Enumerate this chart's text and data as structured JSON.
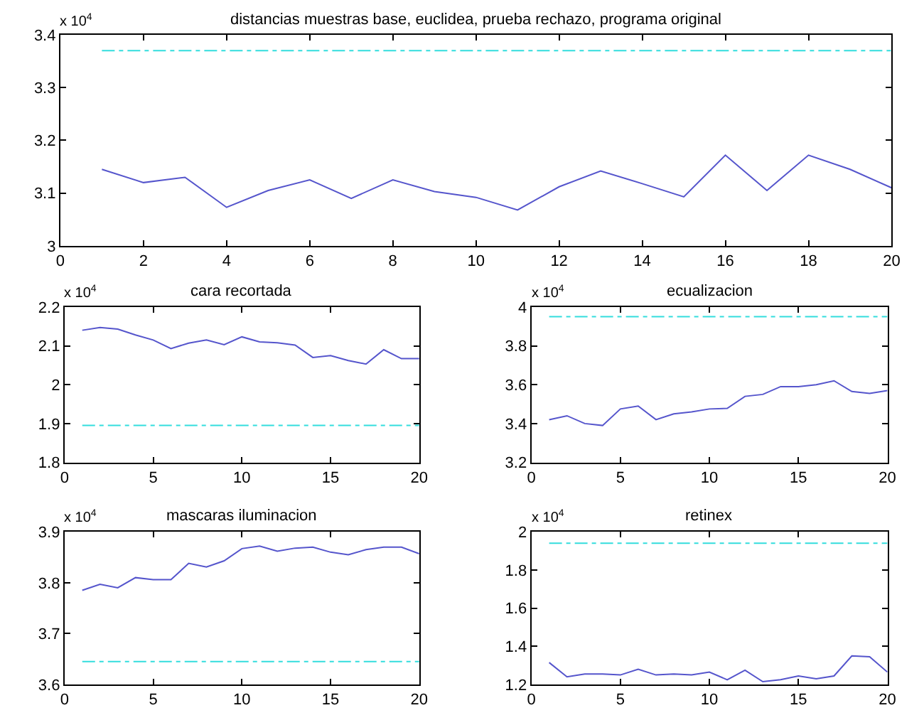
{
  "chart_data": [
    {
      "type": "line",
      "title": "distancias muestras base, euclidea, prueba rechazo, programa original",
      "x": [
        1,
        2,
        3,
        4,
        5,
        6,
        7,
        8,
        9,
        10,
        11,
        12,
        13,
        14,
        15,
        16,
        17,
        18,
        19,
        20
      ],
      "series": [
        {
          "color": "#5555cc",
          "values": [
            3.145,
            3.12,
            3.13,
            3.073,
            3.105,
            3.125,
            3.09,
            3.125,
            3.103,
            3.092,
            3.068,
            3.112,
            3.142,
            3.118,
            3.093,
            3.172,
            3.105,
            3.172,
            3.145,
            3.11
          ]
        }
      ],
      "ref_lines": [
        {
          "axis": "y",
          "value": 3.37,
          "color": "#33dddd",
          "line_style": "dashdot"
        }
      ],
      "xlim": [
        0,
        20
      ],
      "xticks": [
        0,
        2,
        4,
        6,
        8,
        10,
        12,
        14,
        16,
        18,
        20
      ],
      "ylim": [
        3,
        3.4
      ],
      "yticks": [
        3,
        3.1,
        3.2,
        3.3,
        3.4
      ],
      "annotations": [
        "x 10$^{4}$"
      ]
    },
    {
      "type": "line",
      "title": "cara recortada",
      "x": [
        1,
        2,
        3,
        4,
        5,
        6,
        7,
        8,
        9,
        10,
        11,
        12,
        13,
        14,
        15,
        16,
        17,
        18,
        19,
        20
      ],
      "series": [
        {
          "color": "#5555cc",
          "values": [
            2.14,
            2.147,
            2.143,
            2.128,
            2.115,
            2.093,
            2.107,
            2.115,
            2.103,
            2.123,
            2.11,
            2.108,
            2.102,
            2.07,
            2.075,
            2.062,
            2.053,
            2.09,
            2.067,
            2.067
          ]
        }
      ],
      "ref_lines": [
        {
          "axis": "y",
          "value": 1.895,
          "color": "#33dddd",
          "line_style": "dashdot"
        }
      ],
      "xlim": [
        0,
        20
      ],
      "xticks": [
        0,
        5,
        10,
        15,
        20
      ],
      "ylim": [
        1.8,
        2.2
      ],
      "yticks": [
        1.8,
        1.9,
        2,
        2.1,
        2.2
      ],
      "annotations": [
        "x 10$^{4}$"
      ]
    },
    {
      "type": "line",
      "title": "ecualizacion",
      "x": [
        1,
        2,
        3,
        4,
        5,
        6,
        7,
        8,
        9,
        10,
        11,
        12,
        13,
        14,
        15,
        16,
        17,
        18,
        19,
        20
      ],
      "series": [
        {
          "color": "#5555cc",
          "values": [
            3.42,
            3.44,
            3.4,
            3.39,
            3.475,
            3.49,
            3.42,
            3.45,
            3.46,
            3.475,
            3.478,
            3.54,
            3.55,
            3.59,
            3.59,
            3.6,
            3.62,
            3.565,
            3.555,
            3.57
          ]
        }
      ],
      "ref_lines": [
        {
          "axis": "y",
          "value": 3.95,
          "color": "#33dddd",
          "line_style": "dashdot"
        }
      ],
      "xlim": [
        0,
        20
      ],
      "xticks": [
        0,
        5,
        10,
        15,
        20
      ],
      "ylim": [
        3.2,
        4
      ],
      "yticks": [
        3.2,
        3.4,
        3.6,
        3.8,
        4
      ],
      "annotations": [
        "x 10$^{4}$"
      ]
    },
    {
      "type": "line",
      "title": "mascaras iluminacion",
      "x": [
        1,
        2,
        3,
        4,
        5,
        6,
        7,
        8,
        9,
        10,
        11,
        12,
        13,
        14,
        15,
        16,
        17,
        18,
        19,
        20
      ],
      "series": [
        {
          "color": "#5555cc",
          "values": [
            3.785,
            3.797,
            3.79,
            3.81,
            3.806,
            3.806,
            3.838,
            3.831,
            3.843,
            3.867,
            3.872,
            3.862,
            3.868,
            3.87,
            3.86,
            3.855,
            3.865,
            3.87,
            3.87,
            3.857
          ]
        }
      ],
      "ref_lines": [
        {
          "axis": "y",
          "value": 3.645,
          "color": "#33dddd",
          "line_style": "dashdot"
        }
      ],
      "xlim": [
        0,
        20
      ],
      "xticks": [
        0,
        5,
        10,
        15,
        20
      ],
      "ylim": [
        3.6,
        3.9
      ],
      "yticks": [
        3.6,
        3.7,
        3.8,
        3.9
      ],
      "annotations": [
        "x 10$^{4}$"
      ]
    },
    {
      "type": "line",
      "title": "retinex",
      "x": [
        1,
        2,
        3,
        4,
        5,
        6,
        7,
        8,
        9,
        10,
        11,
        12,
        13,
        14,
        15,
        16,
        17,
        18,
        19,
        20
      ],
      "series": [
        {
          "color": "#5555cc",
          "values": [
            1.315,
            1.24,
            1.255,
            1.255,
            1.25,
            1.28,
            1.25,
            1.255,
            1.25,
            1.265,
            1.225,
            1.275,
            1.215,
            1.225,
            1.245,
            1.23,
            1.245,
            1.35,
            1.345,
            1.265
          ]
        }
      ],
      "ref_lines": [
        {
          "axis": "y",
          "value": 1.94,
          "color": "#33dddd",
          "line_style": "dashdot"
        }
      ],
      "xlim": [
        0,
        20
      ],
      "xticks": [
        0,
        5,
        10,
        15,
        20
      ],
      "ylim": [
        1.2,
        2
      ],
      "yticks": [
        1.2,
        1.4,
        1.6,
        1.8,
        2
      ],
      "annotations": [
        "x 10$^{4}$"
      ]
    }
  ]
}
